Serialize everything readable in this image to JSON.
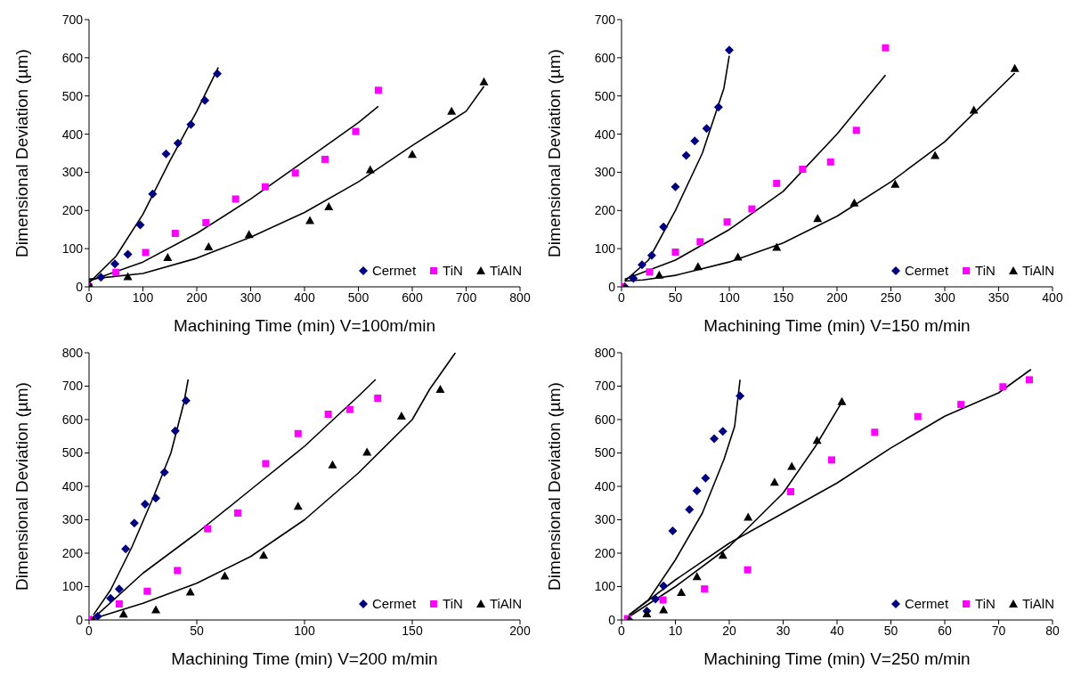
{
  "chart_data": [
    {
      "type": "scatter",
      "xlabel": "Machining Time (min) V=100m/min",
      "ylabel": "Dimensional Deviation (µm)",
      "xlim": [
        0,
        800
      ],
      "xticks": [
        0,
        100,
        200,
        300,
        400,
        500,
        600,
        700,
        800
      ],
      "ylim": [
        0,
        700
      ],
      "yticks": [
        0,
        100,
        200,
        300,
        400,
        500,
        600,
        700
      ],
      "grid": false,
      "legend": "bottom right",
      "series": [
        {
          "name": "Cermet",
          "color": "#000080",
          "marker": "diamond",
          "x": [
            22,
            48,
            72,
            95,
            118,
            143,
            165,
            189,
            215,
            238
          ],
          "values": [
            25,
            60,
            85,
            162,
            243,
            348,
            376,
            425,
            488,
            558
          ]
        },
        {
          "name": "TiN",
          "color": "#ff00ff",
          "marker": "square",
          "x": [
            0,
            50,
            105,
            160,
            217,
            272,
            327,
            383,
            438,
            495,
            537
          ],
          "values": [
            0,
            38,
            90,
            140,
            168,
            230,
            262,
            298,
            334,
            407,
            515
          ]
        },
        {
          "name": "TiAlN",
          "color": "#000000",
          "marker": "triangle",
          "x": [
            3,
            72,
            146,
            222,
            297,
            410,
            445,
            522,
            600,
            673,
            733
          ],
          "values": [
            0,
            27,
            77,
            105,
            137,
            174,
            210,
            307,
            347,
            460,
            537
          ]
        },
        {
          "type": "line",
          "color": "#000000",
          "marker": "none",
          "x": [
            0,
            50,
            100,
            150,
            200,
            240
          ],
          "values": [
            10,
            80,
            190,
            330,
            460,
            575
          ]
        },
        {
          "type": "line",
          "color": "#000000",
          "marker": "none",
          "x": [
            0,
            100,
            200,
            300,
            400,
            500,
            537
          ],
          "values": [
            15,
            65,
            140,
            230,
            330,
            430,
            473
          ]
        },
        {
          "type": "line",
          "color": "#000000",
          "marker": "none",
          "x": [
            0,
            100,
            200,
            300,
            400,
            500,
            600,
            700,
            733
          ],
          "values": [
            20,
            35,
            75,
            130,
            195,
            275,
            370,
            460,
            525
          ]
        }
      ]
    },
    {
      "type": "scatter",
      "xlabel": "Machining Time (min) V=150 m/min",
      "ylabel": "Dimensional Deviation (µm)",
      "xlim": [
        0,
        400
      ],
      "xticks": [
        0,
        50,
        100,
        150,
        200,
        250,
        300,
        350,
        400
      ],
      "ylim": [
        0,
        700
      ],
      "yticks": [
        0,
        100,
        200,
        300,
        400,
        500,
        600,
        700
      ],
      "grid": false,
      "legend": "bottom right",
      "series": [
        {
          "name": "Cermet",
          "color": "#000080",
          "marker": "diamond",
          "x": [
            3,
            11,
            19,
            28,
            39,
            50,
            60,
            68,
            79,
            90,
            100
          ],
          "values": [
            0,
            22,
            58,
            82,
            157,
            262,
            344,
            382,
            415,
            471,
            620
          ]
        },
        {
          "name": "TiN",
          "color": "#ff00ff",
          "marker": "square",
          "x": [
            1,
            26,
            50,
            73,
            98,
            121,
            144,
            168,
            194,
            218,
            245
          ],
          "values": [
            0,
            39,
            91,
            118,
            170,
            204,
            271,
            308,
            327,
            410,
            626
          ]
        },
        {
          "name": "TiAlN",
          "color": "#000000",
          "marker": "triangle",
          "x": [
            3,
            35,
            71,
            108,
            144,
            182,
            216,
            254,
            291,
            327,
            365
          ],
          "values": [
            0,
            31,
            53,
            78,
            104,
            179,
            220,
            269,
            344,
            463,
            572
          ]
        },
        {
          "type": "line",
          "color": "#000000",
          "marker": "none",
          "x": [
            3,
            25,
            50,
            75,
            95,
            100
          ],
          "values": [
            15,
            70,
            200,
            350,
            520,
            605
          ]
        },
        {
          "type": "line",
          "color": "#000000",
          "marker": "none",
          "x": [
            3,
            50,
            100,
            150,
            200,
            245
          ],
          "values": [
            20,
            70,
            150,
            250,
            400,
            555
          ]
        },
        {
          "type": "line",
          "color": "#000000",
          "marker": "none",
          "x": [
            3,
            20,
            50,
            100,
            150,
            200,
            250,
            300,
            365
          ],
          "values": [
            15,
            18,
            30,
            65,
            115,
            185,
            275,
            380,
            560
          ]
        }
      ]
    },
    {
      "type": "scatter",
      "xlabel": "Machining Time (min) V=200 m/min",
      "ylabel": "Dimensional Deviation (µm)",
      "xlim": [
        0,
        200
      ],
      "xticks": [
        0,
        50,
        100,
        150,
        200
      ],
      "ylim": [
        0,
        800
      ],
      "yticks": [
        0,
        100,
        200,
        300,
        400,
        500,
        600,
        700,
        800
      ],
      "grid": false,
      "legend": "bottom right",
      "series": [
        {
          "name": "Cermet",
          "color": "#000080",
          "marker": "diamond",
          "x": [
            1,
            4,
            10,
            14,
            17,
            21,
            26,
            31,
            35,
            40,
            45
          ],
          "values": [
            0,
            11,
            65,
            93,
            213,
            290,
            347,
            365,
            442,
            566,
            657
          ]
        },
        {
          "name": "TiN",
          "color": "#ff00ff",
          "marker": "square",
          "x": [
            1,
            14,
            27,
            41,
            55,
            69,
            82,
            97,
            111,
            121,
            134
          ],
          "values": [
            0,
            48,
            86,
            148,
            273,
            320,
            468,
            558,
            616,
            630,
            664
          ]
        },
        {
          "name": "TiAlN",
          "color": "#000000",
          "marker": "triangle",
          "x": [
            2,
            16,
            31,
            47,
            63,
            81,
            97,
            113,
            129,
            145,
            163
          ],
          "values": [
            0,
            18,
            31,
            84,
            132,
            194,
            341,
            465,
            503,
            611,
            691
          ]
        },
        {
          "type": "line",
          "color": "#000000",
          "marker": "none",
          "x": [
            2,
            10,
            20,
            30,
            38,
            44,
            46
          ],
          "values": [
            15,
            90,
            220,
            370,
            500,
            650,
            720
          ]
        },
        {
          "type": "line",
          "color": "#000000",
          "marker": "none",
          "x": [
            2,
            25,
            50,
            75,
            100,
            125,
            133
          ],
          "values": [
            5,
            140,
            260,
            390,
            520,
            670,
            720
          ]
        },
        {
          "type": "line",
          "color": "#000000",
          "marker": "none",
          "x": [
            4,
            25,
            50,
            75,
            100,
            125,
            150,
            158,
            170
          ],
          "values": [
            8,
            50,
            110,
            190,
            300,
            440,
            600,
            690,
            800
          ]
        }
      ]
    },
    {
      "type": "scatter",
      "xlabel": "Machining Time (min) V=250 m/min",
      "ylabel": "Dimensional Deviation (µm)",
      "xlim": [
        0,
        80
      ],
      "xticks": [
        0,
        10,
        20,
        30,
        40,
        50,
        60,
        70,
        80
      ],
      "ylim": [
        0,
        800
      ],
      "yticks": [
        0,
        100,
        200,
        300,
        400,
        500,
        600,
        700,
        800
      ],
      "grid": false,
      "legend": "bottom right",
      "series": [
        {
          "name": "Cermet",
          "color": "#000080",
          "marker": "diamond",
          "x": [
            1.4,
            4.7,
            6.3,
            7.8,
            9.5,
            12.6,
            14,
            15.6,
            17.2,
            18.8,
            22
          ],
          "values": [
            0,
            27,
            63,
            102,
            267,
            331,
            387,
            425,
            543,
            565,
            671
          ]
        },
        {
          "name": "TiN",
          "color": "#ff00ff",
          "marker": "square",
          "x": [
            1.1,
            7.7,
            15.4,
            23.4,
            31.4,
            39,
            47,
            55,
            63,
            70.8,
            75.7
          ],
          "values": [
            4,
            60,
            93,
            150,
            384,
            479,
            562,
            609,
            645,
            698,
            719
          ]
        },
        {
          "name": "TiAlN",
          "color": "#000000",
          "marker": "triangle",
          "x": [
            1.4,
            4.7,
            7.8,
            11.1,
            14,
            18.8,
            23.5,
            28.4,
            31.6,
            36.3,
            40.9
          ],
          "values": [
            0,
            19,
            31,
            83,
            130,
            194,
            308,
            413,
            460,
            538,
            654
          ]
        },
        {
          "type": "line",
          "color": "#000000",
          "marker": "none",
          "x": [
            1.4,
            5,
            10,
            15,
            19,
            21,
            22
          ],
          "values": [
            15,
            60,
            180,
            320,
            480,
            580,
            719
          ]
        },
        {
          "type": "line",
          "color": "#000000",
          "marker": "none",
          "x": [
            1.4,
            10,
            20,
            30,
            40,
            50,
            60,
            70,
            76
          ],
          "values": [
            15,
            120,
            230,
            320,
            410,
            515,
            610,
            680,
            750
          ]
        },
        {
          "type": "line",
          "color": "#000000",
          "marker": "none",
          "x": [
            1.4,
            10,
            20,
            30,
            36,
            41
          ],
          "values": [
            10,
            100,
            220,
            380,
            520,
            655
          ]
        }
      ]
    }
  ]
}
